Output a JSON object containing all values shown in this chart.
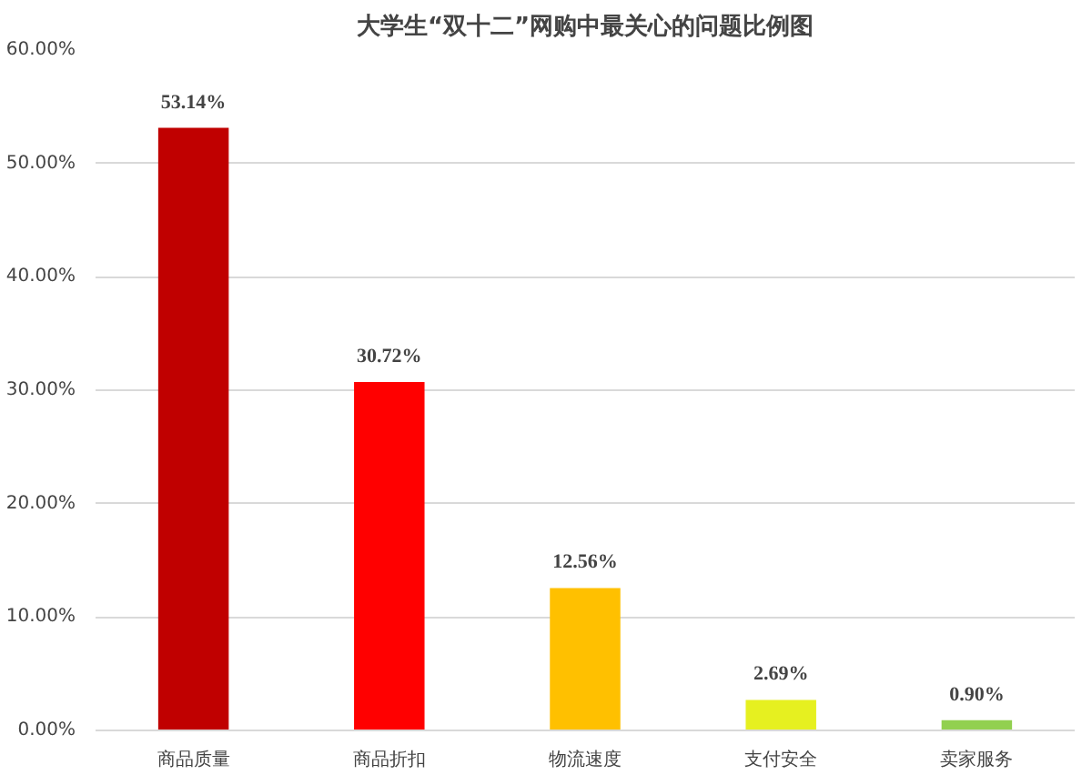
{
  "chart_data": {
    "type": "bar",
    "title": "大学生“双十二”网购中最关心的问题比例图",
    "categories": [
      "商品质量",
      "商品折扣",
      "物流速度",
      "支付安全",
      "卖家服务"
    ],
    "values": [
      53.14,
      30.72,
      12.56,
      2.69,
      0.9
    ],
    "colors": [
      "#c00000",
      "#ff0000",
      "#ffc000",
      "#e6f020",
      "#92d050"
    ],
    "value_labels": [
      "53.14%",
      "30.72%",
      "12.56%",
      "2.69%",
      "0.90%"
    ],
    "ylim": [
      0,
      60
    ],
    "yticks": [
      {
        "value": 0,
        "label": "0.00%"
      },
      {
        "value": 10,
        "label": "10.00%"
      },
      {
        "value": 20,
        "label": "20.00%"
      },
      {
        "value": 30,
        "label": "30.00%"
      },
      {
        "value": 40,
        "label": "40.00%"
      },
      {
        "value": 50,
        "label": "50.00%"
      },
      {
        "value": 60,
        "label": "60.00%"
      }
    ],
    "grid": "y"
  }
}
